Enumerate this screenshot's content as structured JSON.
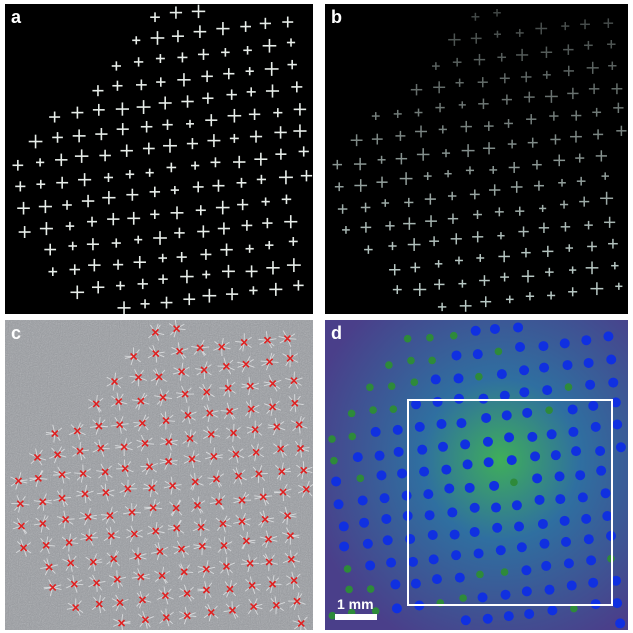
{
  "panels": [
    {
      "label": "a",
      "color": "#ffffff"
    },
    {
      "label": "b",
      "color": "#ffffff"
    },
    {
      "label": "c",
      "color": "#ffffff"
    },
    {
      "label": "d",
      "color": "#ffffff"
    }
  ],
  "scale_bar": {
    "label": "1 mm"
  },
  "colors": {
    "crosses_a": "#e8eeea",
    "crosses_b": "#b8c8c4",
    "markers_c": "#e02020",
    "dots_blue": "#1030e0",
    "dots_green": "#2e8a3a",
    "roi_box": "#ffffff"
  }
}
